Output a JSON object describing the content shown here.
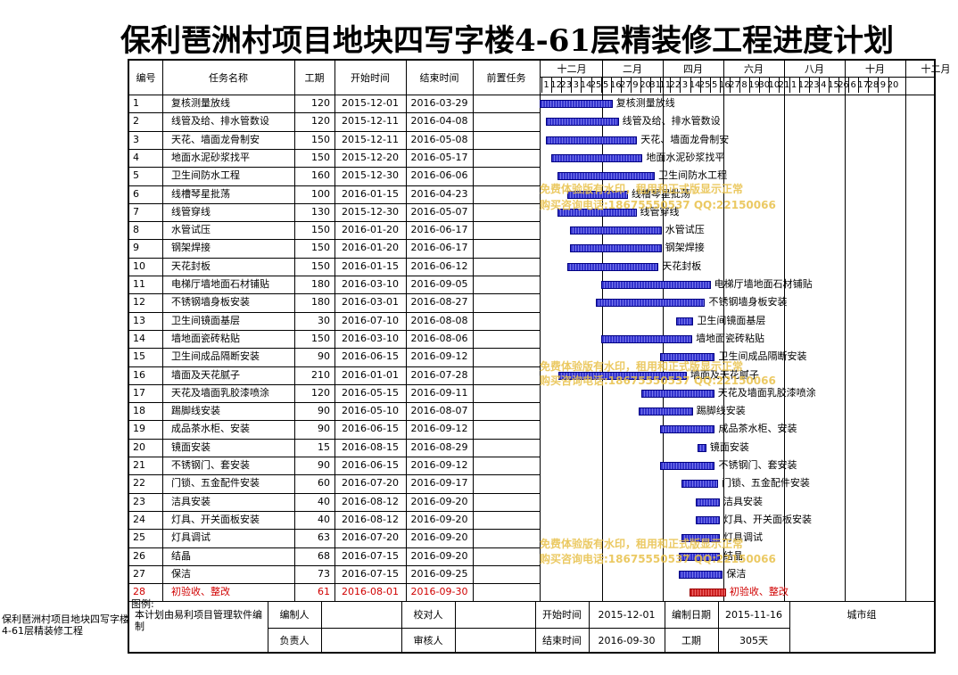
{
  "title": "保利琶洲村项目地块四写字楼4-61层精装修工程进度计划",
  "headers": {
    "id": "编号",
    "name": "任务名称",
    "dur": "工期",
    "start": "开始时间",
    "end": "结束时间",
    "pred": "前置任务"
  },
  "months": [
    "十二月",
    "二月",
    "四月",
    "六月",
    "八月",
    "十月",
    "十二月"
  ],
  "days": [
    "1",
    "12",
    "23",
    "3",
    "14",
    "25",
    "5",
    "16",
    "27",
    "9",
    "20",
    "31",
    "11",
    "22",
    "3",
    "14",
    "25",
    "5",
    "16",
    "27",
    "8",
    "19",
    "30",
    "10",
    "21",
    "1",
    "12",
    "23",
    "4",
    "15",
    "26",
    "6",
    "17",
    "28",
    "9",
    "20"
  ],
  "tasks": [
    {
      "id": "1",
      "name": "复核测量放线",
      "dur": "120",
      "start": "2015-12-01",
      "end": "2016-03-29"
    },
    {
      "id": "2",
      "name": "线管及给、排水管数设",
      "dur": "120",
      "start": "2015-12-11",
      "end": "2016-04-08"
    },
    {
      "id": "3",
      "name": "天花、墙面龙骨制安",
      "dur": "150",
      "start": "2015-12-11",
      "end": "2016-05-08"
    },
    {
      "id": "4",
      "name": "地面水泥砂浆找平",
      "dur": "150",
      "start": "2015-12-20",
      "end": "2016-05-17"
    },
    {
      "id": "5",
      "name": "卫生间防水工程",
      "dur": "160",
      "start": "2015-12-30",
      "end": "2016-06-06"
    },
    {
      "id": "6",
      "name": "线槽琴星批荡",
      "dur": "100",
      "start": "2016-01-15",
      "end": "2016-04-23"
    },
    {
      "id": "7",
      "name": "线管穿线",
      "dur": "130",
      "start": "2015-12-30",
      "end": "2016-05-07"
    },
    {
      "id": "8",
      "name": "水管试压",
      "dur": "150",
      "start": "2016-01-20",
      "end": "2016-06-17"
    },
    {
      "id": "9",
      "name": "钢架焊接",
      "dur": "150",
      "start": "2016-01-20",
      "end": "2016-06-17"
    },
    {
      "id": "10",
      "name": "天花封板",
      "dur": "150",
      "start": "2016-01-15",
      "end": "2016-06-12"
    },
    {
      "id": "11",
      "name": "电梯厅墙地面石材铺贴",
      "dur": "180",
      "start": "2016-03-10",
      "end": "2016-09-05"
    },
    {
      "id": "12",
      "name": "不锈钢墙身板安装",
      "dur": "180",
      "start": "2016-03-01",
      "end": "2016-08-27"
    },
    {
      "id": "13",
      "name": "卫生间镜面基层",
      "dur": "30",
      "start": "2016-07-10",
      "end": "2016-08-08"
    },
    {
      "id": "14",
      "name": "墙地面瓷砖粘贴",
      "dur": "150",
      "start": "2016-03-10",
      "end": "2016-08-06"
    },
    {
      "id": "15",
      "name": "卫生间成品隔断安装",
      "dur": "90",
      "start": "2016-06-15",
      "end": "2016-09-12"
    },
    {
      "id": "16",
      "name": "墙面及天花腻子",
      "dur": "210",
      "start": "2016-01-01",
      "end": "2016-07-28"
    },
    {
      "id": "17",
      "name": "天花及墙面乳胶漆喷涂",
      "dur": "120",
      "start": "2016-05-15",
      "end": "2016-09-11"
    },
    {
      "id": "18",
      "name": "踢脚线安装",
      "dur": "90",
      "start": "2016-05-10",
      "end": "2016-08-07"
    },
    {
      "id": "19",
      "name": "成品茶水柜、安装",
      "dur": "90",
      "start": "2016-06-15",
      "end": "2016-09-12"
    },
    {
      "id": "20",
      "name": "镜面安装",
      "dur": "15",
      "start": "2016-08-15",
      "end": "2016-08-29"
    },
    {
      "id": "21",
      "name": "不锈钢门、套安装",
      "dur": "90",
      "start": "2016-06-15",
      "end": "2016-09-12"
    },
    {
      "id": "22",
      "name": "门锁、五金配件安装",
      "dur": "60",
      "start": "2016-07-20",
      "end": "2016-09-17"
    },
    {
      "id": "23",
      "name": "洁具安装",
      "dur": "40",
      "start": "2016-08-12",
      "end": "2016-09-20"
    },
    {
      "id": "24",
      "name": "灯具、开关面板安装",
      "dur": "40",
      "start": "2016-08-12",
      "end": "2016-09-20"
    },
    {
      "id": "25",
      "name": "灯具调试",
      "dur": "63",
      "start": "2016-07-20",
      "end": "2016-09-20"
    },
    {
      "id": "26",
      "name": "结晶",
      "dur": "68",
      "start": "2016-07-15",
      "end": "2016-09-20"
    },
    {
      "id": "27",
      "name": "保洁",
      "dur": "73",
      "start": "2016-07-15",
      "end": "2016-09-25"
    },
    {
      "id": "28",
      "name": "初验收、整改",
      "dur": "61",
      "start": "2016-08-01",
      "end": "2016-09-30",
      "red": true
    }
  ],
  "footer": {
    "legend_label": "图例:",
    "note": "本计划由易利项目管理软件编制",
    "editor_label": "编制人",
    "checker_label": "校对人",
    "manager_label": "负责人",
    "reviewer_label": "审核人",
    "start_label": "开始时间",
    "start_value": "2015-12-01",
    "date_label": "编制日期",
    "date_value": "2015-11-16",
    "end_label": "结束时间",
    "end_value": "2016-09-30",
    "dur_label": "工期",
    "dur_value": "305天",
    "group": "城市组"
  },
  "side_label": "保利琶洲村项目地块四写字楼4-61层精装修工程",
  "watermark_line1": "免费体验版有水印，租用和正式版显示正常",
  "watermark_line2": "购买咨询电话:18675550537 QQ:22150066",
  "colors": {
    "bar": "#3333cc",
    "critical": "#cc2222",
    "watermark": "#e8c048"
  }
}
